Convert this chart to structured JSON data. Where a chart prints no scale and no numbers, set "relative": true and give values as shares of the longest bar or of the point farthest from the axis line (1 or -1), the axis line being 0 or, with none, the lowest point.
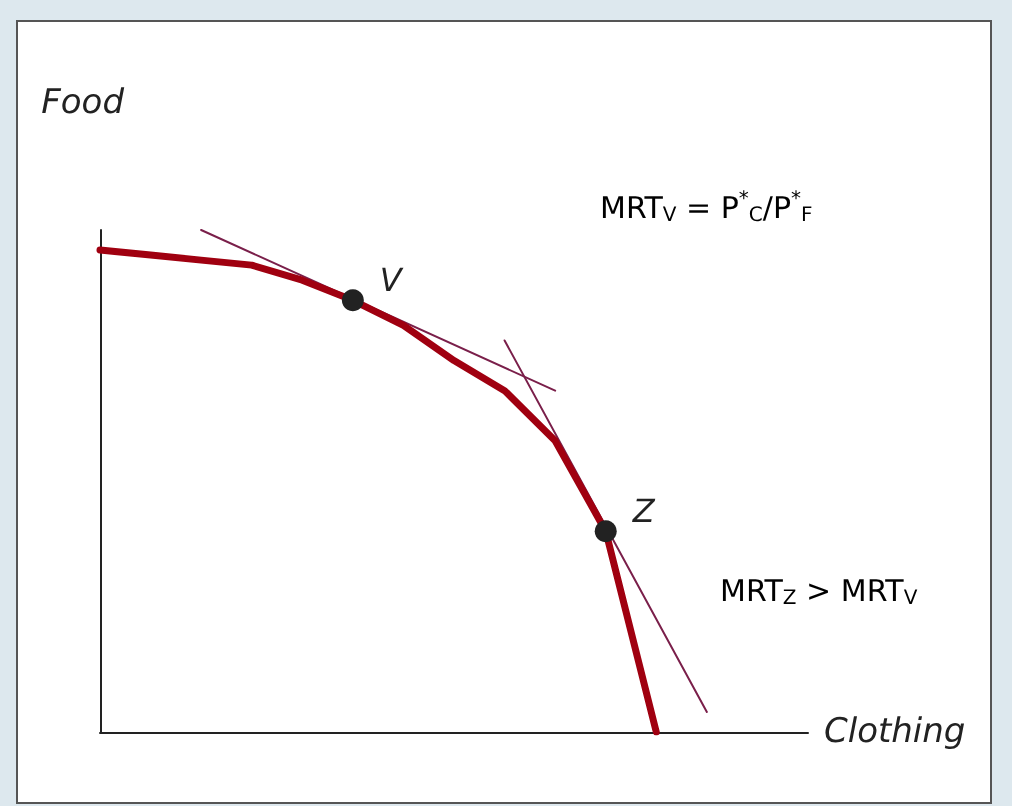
{
  "chart_data": {
    "type": "line",
    "xlabel": "Clothing",
    "ylabel": "Food",
    "relative": true,
    "grid": false,
    "marker": "none",
    "categories": [
      null,
      null,
      null,
      null,
      null,
      null,
      null,
      null,
      null,
      null,
      null,
      null,
      null,
      null,
      null
    ],
    "annotations": [
      "MRT$_{V}$ = P$^{*}$$_{C}$/P$^{*}$$_{F}$",
      "MRT$_{Z}$ > MRT$_{V}$"
    ],
    "series": [
      {
        "color": "#a00010",
        "values": [
          0.96,
          0.95,
          0.94,
          0.93,
          0.9,
          0.86,
          0.81,
          0.74,
          0.68,
          0.58,
          0.4,
          0,
          null,
          null,
          null
        ]
      },
      {
        "color": "#7a1f4a",
        "values": [
          null,
          null,
          1.0,
          null,
          null,
          null,
          null,
          null,
          null,
          0.68,
          null,
          null,
          null,
          null,
          null
        ]
      },
      {
        "color": "#7a1f4a",
        "values": [
          null,
          null,
          null,
          null,
          null,
          null,
          null,
          null,
          0.78,
          null,
          null,
          null,
          0.04,
          null,
          null
        ]
      },
      {
        "name": "V",
        "color": "#222222",
        "marker": "circle",
        "values": [
          null,
          null,
          null,
          null,
          null,
          0.86,
          null,
          null,
          null,
          null,
          null,
          null,
          null,
          null,
          null
        ]
      },
      {
        "name": "Z",
        "color": "#222222",
        "marker": "circle",
        "values": [
          null,
          null,
          null,
          null,
          null,
          null,
          null,
          null,
          null,
          null,
          0.4,
          null,
          null,
          null,
          null
        ]
      }
    ]
  }
}
